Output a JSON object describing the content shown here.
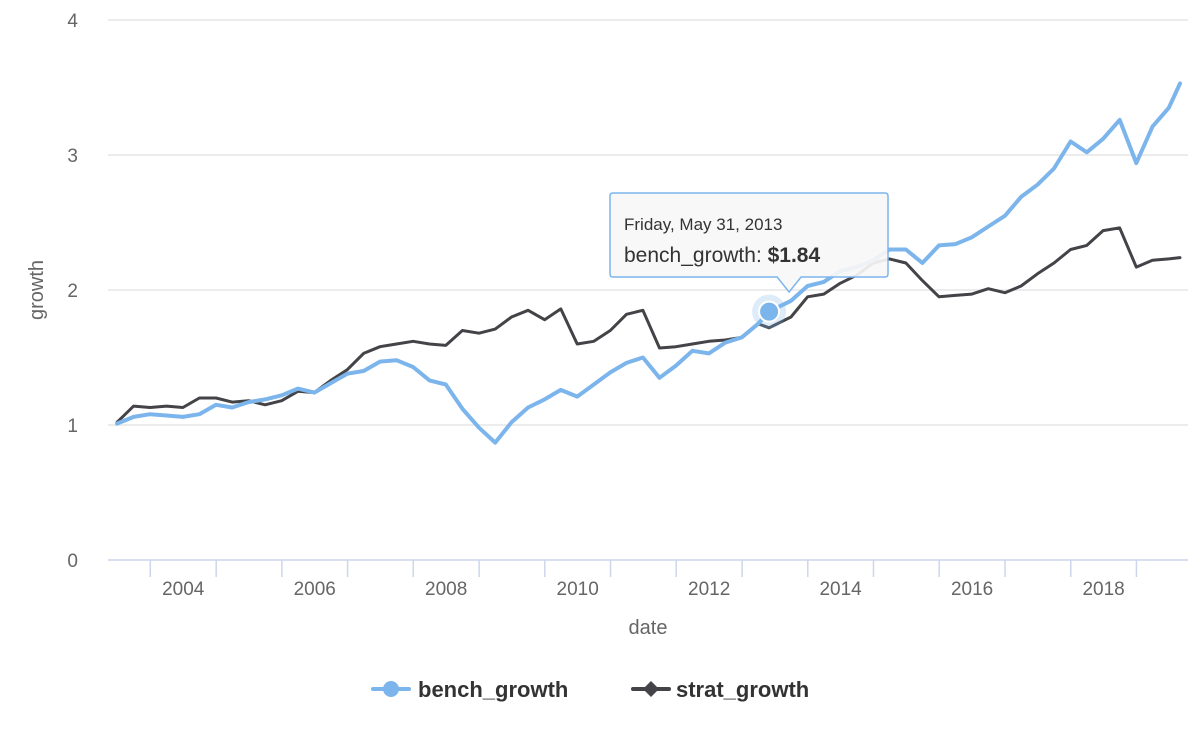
{
  "chart_data": {
    "type": "line",
    "xlabel": "date",
    "ylabel": "growth",
    "ylim": [
      0,
      4
    ],
    "yticks": [
      "0",
      "1",
      "2",
      "3",
      "4"
    ],
    "xlim": [
      "2003-06-30",
      "2019-08-31"
    ],
    "xticks": [
      "2004",
      "2006",
      "2008",
      "2010",
      "2012",
      "2014",
      "2016",
      "2018"
    ],
    "grid": "horizontal",
    "legend_position": "bottom-center",
    "series": [
      {
        "name": "bench_growth",
        "color": "#7cb5ec",
        "marker": "circle",
        "points": [
          [
            "2003-06-30",
            1.01
          ],
          [
            "2003-09-30",
            1.06
          ],
          [
            "2003-12-31",
            1.08
          ],
          [
            "2004-03-31",
            1.07
          ],
          [
            "2004-06-30",
            1.06
          ],
          [
            "2004-09-30",
            1.08
          ],
          [
            "2004-12-31",
            1.15
          ],
          [
            "2005-03-31",
            1.13
          ],
          [
            "2005-06-30",
            1.17
          ],
          [
            "2005-09-30",
            1.19
          ],
          [
            "2005-12-31",
            1.22
          ],
          [
            "2006-03-31",
            1.27
          ],
          [
            "2006-06-30",
            1.24
          ],
          [
            "2006-09-30",
            1.31
          ],
          [
            "2006-12-31",
            1.38
          ],
          [
            "2007-03-31",
            1.4
          ],
          [
            "2007-06-30",
            1.47
          ],
          [
            "2007-09-30",
            1.48
          ],
          [
            "2007-12-31",
            1.43
          ],
          [
            "2008-03-31",
            1.33
          ],
          [
            "2008-06-30",
            1.3
          ],
          [
            "2008-09-30",
            1.12
          ],
          [
            "2008-12-31",
            0.98
          ],
          [
            "2009-03-31",
            0.87
          ],
          [
            "2009-06-30",
            1.02
          ],
          [
            "2009-09-30",
            1.13
          ],
          [
            "2009-12-31",
            1.19
          ],
          [
            "2010-03-31",
            1.26
          ],
          [
            "2010-06-30",
            1.21
          ],
          [
            "2010-09-30",
            1.3
          ],
          [
            "2010-12-31",
            1.39
          ],
          [
            "2011-03-31",
            1.46
          ],
          [
            "2011-06-30",
            1.5
          ],
          [
            "2011-09-30",
            1.35
          ],
          [
            "2011-12-31",
            1.44
          ],
          [
            "2012-03-31",
            1.55
          ],
          [
            "2012-06-30",
            1.53
          ],
          [
            "2012-09-30",
            1.61
          ],
          [
            "2012-12-31",
            1.65
          ],
          [
            "2013-03-31",
            1.75
          ],
          [
            "2013-05-31",
            1.84
          ],
          [
            "2013-09-30",
            1.92
          ],
          [
            "2013-12-31",
            2.03
          ],
          [
            "2014-03-31",
            2.06
          ],
          [
            "2014-06-30",
            2.14
          ],
          [
            "2014-09-30",
            2.17
          ],
          [
            "2014-12-31",
            2.22
          ],
          [
            "2015-03-31",
            2.3
          ],
          [
            "2015-06-30",
            2.3
          ],
          [
            "2015-09-30",
            2.2
          ],
          [
            "2015-12-31",
            2.33
          ],
          [
            "2016-03-31",
            2.34
          ],
          [
            "2016-06-30",
            2.39
          ],
          [
            "2016-09-30",
            2.47
          ],
          [
            "2016-12-31",
            2.55
          ],
          [
            "2017-03-31",
            2.69
          ],
          [
            "2017-06-30",
            2.78
          ],
          [
            "2017-09-30",
            2.9
          ],
          [
            "2017-12-31",
            3.1
          ],
          [
            "2018-03-31",
            3.02
          ],
          [
            "2018-06-30",
            3.12
          ],
          [
            "2018-09-30",
            3.26
          ],
          [
            "2018-12-31",
            2.94
          ],
          [
            "2019-03-31",
            3.21
          ],
          [
            "2019-06-30",
            3.35
          ],
          [
            "2019-08-31",
            3.53
          ]
        ]
      },
      {
        "name": "strat_growth",
        "color": "#434348",
        "marker": "diamond",
        "points": [
          [
            "2003-06-30",
            1.02
          ],
          [
            "2003-09-30",
            1.14
          ],
          [
            "2003-12-31",
            1.13
          ],
          [
            "2004-03-31",
            1.14
          ],
          [
            "2004-06-30",
            1.13
          ],
          [
            "2004-09-30",
            1.2
          ],
          [
            "2004-12-31",
            1.2
          ],
          [
            "2005-03-31",
            1.17
          ],
          [
            "2005-06-30",
            1.18
          ],
          [
            "2005-09-30",
            1.15
          ],
          [
            "2005-12-31",
            1.18
          ],
          [
            "2006-03-31",
            1.25
          ],
          [
            "2006-06-30",
            1.24
          ],
          [
            "2006-09-30",
            1.33
          ],
          [
            "2006-12-31",
            1.41
          ],
          [
            "2007-03-31",
            1.53
          ],
          [
            "2007-06-30",
            1.58
          ],
          [
            "2007-09-30",
            1.6
          ],
          [
            "2007-12-31",
            1.62
          ],
          [
            "2008-03-31",
            1.6
          ],
          [
            "2008-06-30",
            1.59
          ],
          [
            "2008-09-30",
            1.7
          ],
          [
            "2008-12-31",
            1.68
          ],
          [
            "2009-03-31",
            1.71
          ],
          [
            "2009-06-30",
            1.8
          ],
          [
            "2009-09-30",
            1.85
          ],
          [
            "2009-12-31",
            1.78
          ],
          [
            "2010-03-31",
            1.86
          ],
          [
            "2010-06-30",
            1.6
          ],
          [
            "2010-09-30",
            1.62
          ],
          [
            "2010-12-31",
            1.7
          ],
          [
            "2011-03-31",
            1.82
          ],
          [
            "2011-06-30",
            1.85
          ],
          [
            "2011-09-30",
            1.57
          ],
          [
            "2011-12-31",
            1.58
          ],
          [
            "2012-03-31",
            1.6
          ],
          [
            "2012-06-30",
            1.62
          ],
          [
            "2012-09-30",
            1.63
          ],
          [
            "2012-12-31",
            1.65
          ],
          [
            "2013-03-31",
            1.75
          ],
          [
            "2013-05-31",
            1.72
          ],
          [
            "2013-09-30",
            1.8
          ],
          [
            "2013-12-31",
            1.95
          ],
          [
            "2014-03-31",
            1.97
          ],
          [
            "2014-06-30",
            2.05
          ],
          [
            "2014-09-30",
            2.11
          ],
          [
            "2014-12-31",
            2.2
          ],
          [
            "2015-03-31",
            2.23
          ],
          [
            "2015-06-30",
            2.2
          ],
          [
            "2015-09-30",
            2.07
          ],
          [
            "2015-12-31",
            1.95
          ],
          [
            "2016-03-31",
            1.96
          ],
          [
            "2016-06-30",
            1.97
          ],
          [
            "2016-09-30",
            2.01
          ],
          [
            "2016-12-31",
            1.98
          ],
          [
            "2017-03-31",
            2.03
          ],
          [
            "2017-06-30",
            2.12
          ],
          [
            "2017-09-30",
            2.2
          ],
          [
            "2017-12-31",
            2.3
          ],
          [
            "2018-03-31",
            2.33
          ],
          [
            "2018-06-30",
            2.44
          ],
          [
            "2018-09-30",
            2.46
          ],
          [
            "2018-12-31",
            2.17
          ],
          [
            "2019-03-31",
            2.22
          ],
          [
            "2019-06-30",
            2.23
          ],
          [
            "2019-08-31",
            2.24
          ]
        ]
      }
    ]
  },
  "tooltip": {
    "date_text": "Friday, May 31, 2013",
    "series_label": "bench_growth",
    "value_text": "$1.84",
    "point_date": "2013-05-31",
    "point_value": 1.84
  }
}
